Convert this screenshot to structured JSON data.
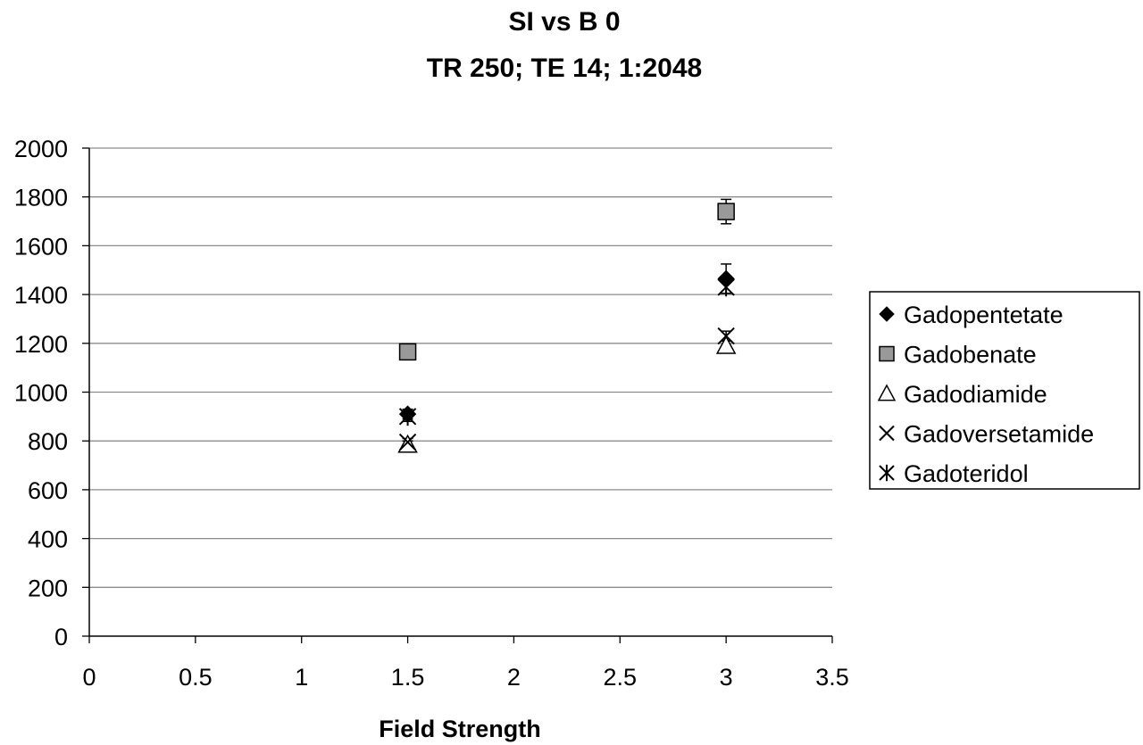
{
  "chart_data": {
    "type": "scatter",
    "title": "SI vs B 0",
    "subtitle": "TR 250; TE 14; 1:2048",
    "xlabel": "Field Strength",
    "ylabel": "",
    "xlim": [
      0,
      3.5
    ],
    "ylim": [
      0,
      2000
    ],
    "xticks": [
      "0",
      "0.5",
      "1",
      "1.5",
      "2",
      "2.5",
      "3",
      "3.5"
    ],
    "yticks": [
      "0",
      "200",
      "400",
      "600",
      "800",
      "1000",
      "1200",
      "1400",
      "1600",
      "1800",
      "2000"
    ],
    "grid": "horizontal",
    "legend_position": "right",
    "series": [
      {
        "name": "Gadopentetate",
        "marker": "diamond",
        "color": "#000000",
        "points": [
          {
            "x": 1.5,
            "y": 910,
            "err": 20
          },
          {
            "x": 3,
            "y": 1465,
            "err": 60
          }
        ]
      },
      {
        "name": "Gadobenate",
        "marker": "square",
        "color": "#999999",
        "points": [
          {
            "x": 1.5,
            "y": 1165,
            "err": 25
          },
          {
            "x": 3,
            "y": 1740,
            "err": 50
          }
        ]
      },
      {
        "name": "Gadodiamide",
        "marker": "triangle",
        "color": "#ffffff",
        "points": [
          {
            "x": 1.5,
            "y": 785,
            "err": 15
          },
          {
            "x": 3,
            "y": 1190,
            "err": 20
          }
        ]
      },
      {
        "name": "Gadoversetamide",
        "marker": "x",
        "color": "#000000",
        "points": [
          {
            "x": 1.5,
            "y": 795,
            "err": 15
          },
          {
            "x": 3,
            "y": 1230,
            "err": 20
          }
        ]
      },
      {
        "name": "Gadoteridol",
        "marker": "star",
        "color": "#000000",
        "points": [
          {
            "x": 1.5,
            "y": 900,
            "err": 20
          },
          {
            "x": 3,
            "y": 1430,
            "err": 25
          }
        ]
      }
    ]
  }
}
